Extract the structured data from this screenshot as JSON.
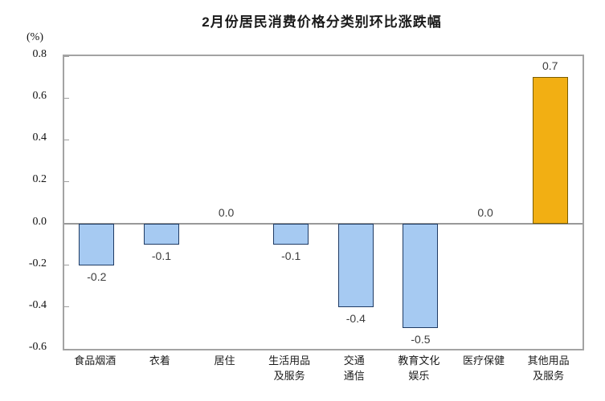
{
  "chart_data": {
    "type": "bar",
    "title": "2月份居民消费价格分类别环比涨跌幅",
    "unit_label": "(%)",
    "xlabel": "",
    "ylabel": "(%)",
    "categories": [
      "食品烟酒",
      "衣着",
      "居住",
      "生活用品\n及服务",
      "交通\n通信",
      "教育文化\n娱乐",
      "医疗保健",
      "其他用品\n及服务"
    ],
    "values": [
      -0.2,
      -0.1,
      0.0,
      -0.1,
      -0.4,
      -0.5,
      0.0,
      0.7
    ],
    "value_labels": [
      "-0.2",
      "-0.1",
      "0.0",
      "-0.1",
      "-0.4",
      "-0.5",
      "0.0",
      "0.7"
    ],
    "ylim": [
      -0.6,
      0.8
    ],
    "y_tick_values": [
      0.8,
      0.6,
      0.4,
      0.2,
      0.0,
      -0.2,
      -0.4,
      -0.6
    ],
    "y_tick_labels": [
      "0.8",
      "0.6",
      "0.4",
      "0.2",
      "0.0",
      "-0.2",
      "-0.4",
      "-0.6"
    ],
    "grid": false,
    "legend_position": "none",
    "bar_fill_colors": [
      "#a6caf2",
      "#a6caf2",
      "#a6caf2",
      "#a6caf2",
      "#a6caf2",
      "#a6caf2",
      "#a6caf2",
      "#f2af13"
    ],
    "bar_border_colors": [
      "#1f3b64",
      "#1f3b64",
      "#1f3b64",
      "#1f3b64",
      "#1f3b64",
      "#1f3b64",
      "#1f3b64",
      "#7a5c00"
    ],
    "colors": {
      "frame": "#a3a3a3",
      "zero_line": "#999999",
      "tick": "#9e9e9e",
      "title_text": "#1a1a1a",
      "label_text": "#3d3d3d"
    }
  }
}
